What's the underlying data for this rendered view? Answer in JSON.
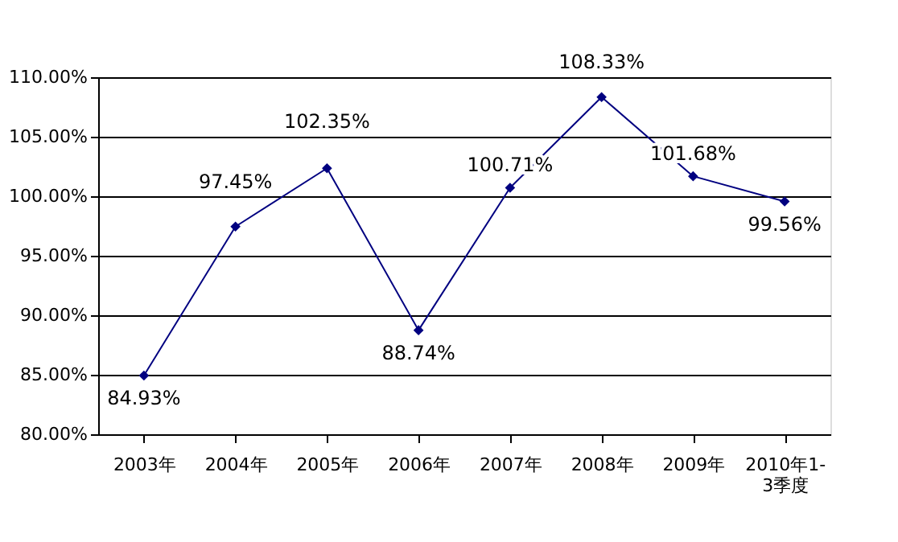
{
  "chart_data": {
    "type": "line",
    "categories": [
      "2003年",
      "2004年",
      "2005年",
      "2006年",
      "2007年",
      "2008年",
      "2009年",
      "2010年1-3季度"
    ],
    "series": [
      {
        "color": "#000080",
        "values": [
          84.93,
          97.45,
          102.35,
          88.74,
          100.71,
          108.33,
          101.68,
          99.56
        ],
        "value_labels": [
          "84.93%",
          "97.45%",
          "102.35%",
          "88.74%",
          "100.71%",
          "108.33%",
          "101.68%",
          "99.56%"
        ]
      }
    ],
    "ylim": [
      80,
      110
    ],
    "yticks": [
      {
        "value": 80,
        "label": "80.00%"
      },
      {
        "value": 85,
        "label": "85.00%"
      },
      {
        "value": 90,
        "label": "90.00%"
      },
      {
        "value": 95,
        "label": "95.00%"
      },
      {
        "value": 100,
        "label": "100.00%"
      },
      {
        "value": 105,
        "label": "105.00%"
      },
      {
        "value": 110,
        "label": "110.00%"
      }
    ],
    "grid": "y",
    "marker": "diamond",
    "line_style": "solid"
  }
}
